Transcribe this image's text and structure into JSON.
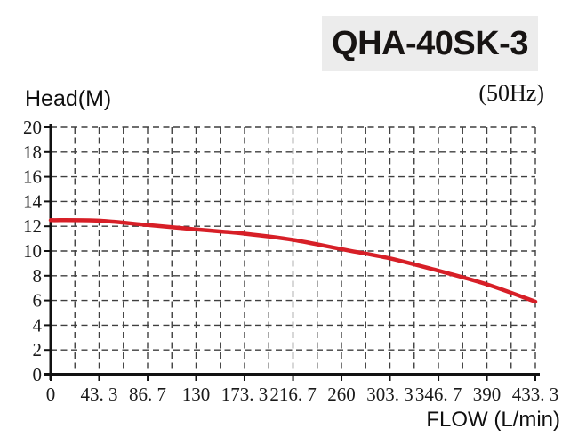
{
  "header": {
    "model_title": "QHA-40SK-3",
    "frequency": "(50Hz)"
  },
  "axes": {
    "y_title": "Head(M)",
    "x_title": "FLOW (L/min)"
  },
  "chart_data": {
    "type": "line",
    "title": "QHA-40SK-3",
    "subtitle": "(50Hz)",
    "xlabel": "FLOW (L/min)",
    "ylabel": "Head(M)",
    "xlim": [
      0,
      433.3
    ],
    "ylim": [
      0,
      20
    ],
    "x_ticks": [
      0,
      43.3,
      86.7,
      130,
      173.3,
      216.7,
      260,
      303.3,
      346.7,
      390,
      433.3
    ],
    "x_tick_labels": [
      "0",
      "43. 3",
      "86. 7",
      "130",
      "173. 3",
      "216. 7",
      "260",
      "303. 3",
      "346. 7",
      "390",
      "433. 3"
    ],
    "y_ticks": [
      0,
      2,
      4,
      6,
      8,
      10,
      12,
      14,
      16,
      18,
      20
    ],
    "y_tick_labels": [
      "0",
      "2",
      "4",
      "6",
      "8",
      "10",
      "12",
      "14",
      "16",
      "18",
      "20"
    ],
    "grid": "dashed grid; vertical lines at every half x-tick interval, horizontal at every y-tick",
    "legend": "none",
    "series": [
      {
        "name": "head-flow performance curve",
        "color": "#d71f27",
        "x": [
          0,
          43.3,
          86.7,
          130,
          173.3,
          216.7,
          260,
          303.3,
          346.7,
          390,
          433.3
        ],
        "y": [
          12.5,
          12.45,
          12.1,
          11.75,
          11.4,
          10.9,
          10.15,
          9.4,
          8.4,
          7.3,
          5.9
        ]
      }
    ]
  },
  "colors": {
    "curve": "#d71f27",
    "title_background": "#ececec",
    "grid_line": "#3f3f3f",
    "axis_line": "#111111",
    "text": "#1a1a1a"
  }
}
